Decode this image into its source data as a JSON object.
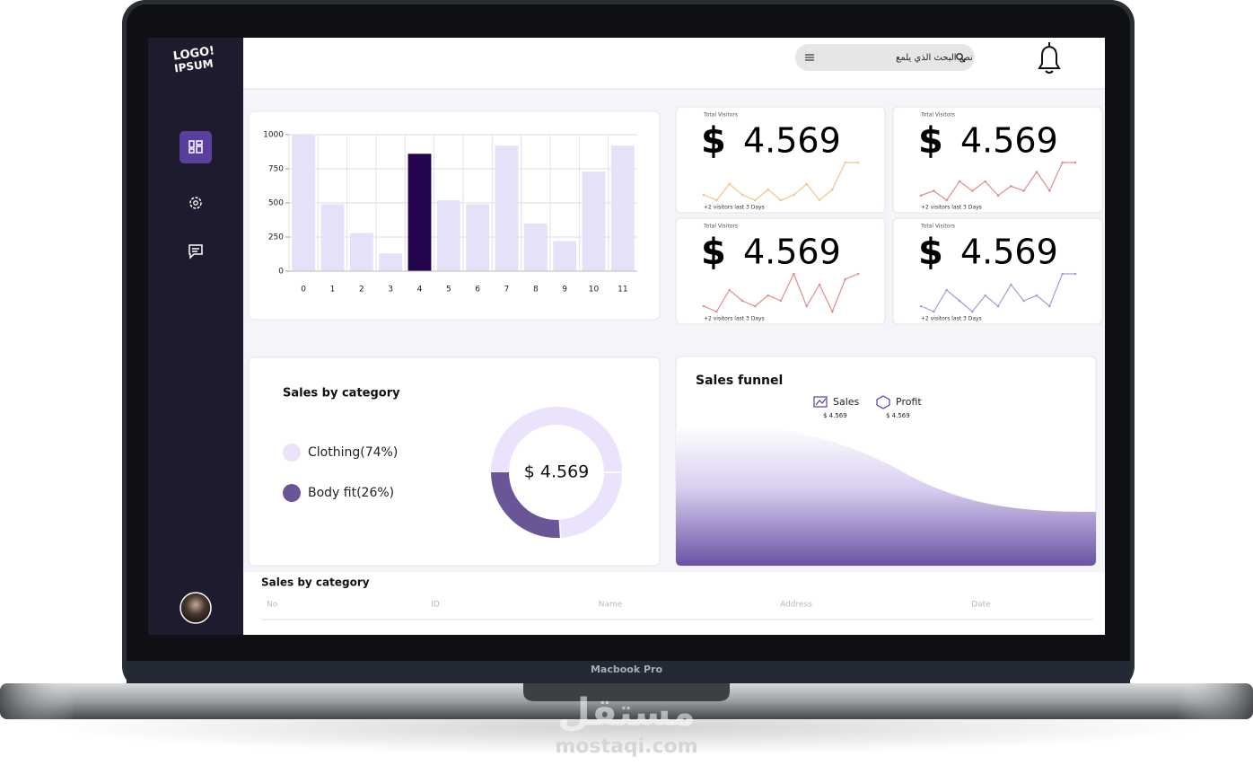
{
  "sidebar": {
    "logo": [
      "LOGO!",
      "IPSUM"
    ]
  },
  "header": {
    "search_placeholder": "نص البحث الذي يلمع"
  },
  "chart_data": [
    {
      "type": "bar",
      "categories": [
        "0",
        "1",
        "2",
        "3",
        "4",
        "5",
        "6",
        "7",
        "8",
        "9",
        "10",
        "11"
      ],
      "values": [
        1000,
        490,
        280,
        130,
        860,
        520,
        490,
        920,
        350,
        220,
        730,
        920
      ],
      "colors": [
        "#e6e0f8",
        "#e6e0f8",
        "#e6e0f8",
        "#e6e0f8",
        "#24064f",
        "#e6e0f8",
        "#e6e0f8",
        "#e6e0f8",
        "#e6e0f8",
        "#e6e0f8",
        "#e6e0f8",
        "#e6e0f8"
      ],
      "ylim": [
        0,
        1000
      ],
      "yticks": [
        0,
        250,
        500,
        750,
        1000
      ],
      "grid": true
    },
    {
      "type": "pie",
      "title": "Sales by category",
      "center_label": "$ 4.569",
      "series": [
        {
          "name": "Clothing(74%)",
          "value": 74,
          "color": "#ebe3fc"
        },
        {
          "name": "Body fit(26%)",
          "value": 26,
          "color": "#6a5597"
        }
      ]
    }
  ],
  "stat_cards": [
    {
      "label": "Total Visitors",
      "currency": "$",
      "value": "4.569",
      "footnote": "+2 visitors last 3 Days",
      "color": "#f3c48f",
      "values": [
        3,
        2,
        5,
        3,
        2,
        4,
        2,
        3,
        5,
        2,
        4,
        9,
        9
      ]
    },
    {
      "label": "Total Visitors",
      "currency": "$",
      "value": "4.569",
      "footnote": "+2 visitors last 3 Days",
      "color": "#e38c8c",
      "values": [
        2,
        3,
        1,
        5,
        3,
        5,
        2,
        4,
        3,
        7,
        3,
        9,
        9
      ]
    },
    {
      "label": "Total Visitors",
      "currency": "$",
      "value": "4.569",
      "footnote": "+2 visitors last 3 Days",
      "color": "#e38c8c",
      "values": [
        2,
        1,
        5,
        3,
        2,
        4,
        3,
        8,
        2,
        6,
        1,
        7,
        8
      ]
    },
    {
      "label": "Total Visitors",
      "currency": "$",
      "value": "4.569",
      "footnote": "+2 visitors last 3 Days",
      "color": "#a79ad6",
      "values": [
        2,
        1,
        5,
        3,
        1,
        4,
        2,
        6,
        3,
        4,
        2,
        8,
        8
      ]
    }
  ],
  "funnel": {
    "title": "Sales funnel",
    "legend": [
      {
        "name": "Sales",
        "value": "$ 4.569"
      },
      {
        "name": "Profit",
        "value": "$ 4.569"
      }
    ]
  },
  "table": {
    "title": "Sales by category",
    "columns": [
      "No",
      "ID",
      "Name",
      "Address",
      "Date"
    ]
  },
  "device": {
    "model": "Macbook Pro"
  },
  "watermark": {
    "arabic": "مستقل",
    "site": "mostaqi.com"
  }
}
